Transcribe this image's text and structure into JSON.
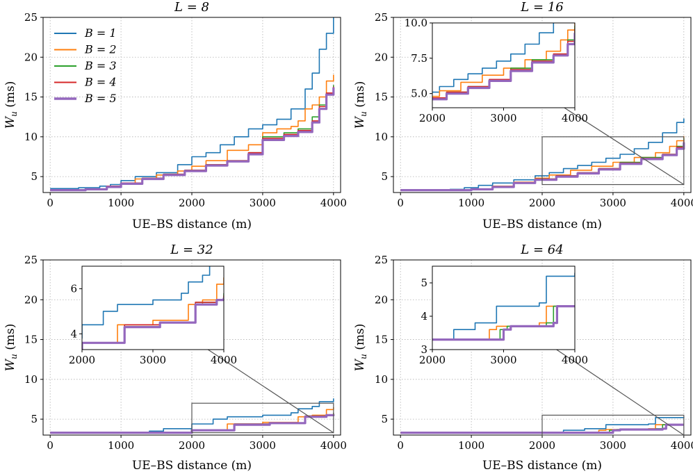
{
  "figure": {
    "x_label": "UE–BS distance (m)",
    "y_label_main": "W",
    "y_label_sub": "u",
    "y_label_unit": " (ms)"
  },
  "colors": {
    "B1": "#1f77b4",
    "B2": "#ff7f0e",
    "B3": "#2ca02c",
    "B4": "#d62728",
    "B5": "#9467bd",
    "grid": "#b0b0b0",
    "connector": "#555555"
  },
  "chart_data": [
    {
      "type": "line",
      "title": "L = 8",
      "xlim": [
        -100,
        4100
      ],
      "ylim": [
        3,
        25
      ],
      "xticks": [
        0,
        1000,
        2000,
        3000,
        4000
      ],
      "yticks": [
        5,
        10,
        15,
        20,
        25
      ],
      "legend": {
        "position": "top-left",
        "entries": [
          "B = 1",
          "B = 2",
          "B = 3",
          "B = 4",
          "B = 5"
        ]
      },
      "series": [
        {
          "name": "B = 1",
          "x": [
            0,
            400,
            700,
            850,
            1000,
            1200,
            1500,
            1800,
            2000,
            2200,
            2400,
            2600,
            2800,
            3000,
            3200,
            3400,
            3600,
            3700,
            3800,
            3900,
            4000
          ],
          "y": [
            3.5,
            3.6,
            3.8,
            4.0,
            4.5,
            5.0,
            5.5,
            6.5,
            7.5,
            8.0,
            9.0,
            10.0,
            11.0,
            11.5,
            12.2,
            13.5,
            16.0,
            18.0,
            21.0,
            23.0,
            25.0
          ]
        },
        {
          "name": "B = 2",
          "x": [
            0,
            500,
            800,
            1000,
            1200,
            1500,
            1800,
            2000,
            2200,
            2500,
            2800,
            3000,
            3200,
            3400,
            3500,
            3600,
            3700,
            3800,
            3900,
            4000
          ],
          "y": [
            3.3,
            3.4,
            3.8,
            4.2,
            4.7,
            5.2,
            5.7,
            6.3,
            7.0,
            8.3,
            9.0,
            10.5,
            11.0,
            11.3,
            12.0,
            13.5,
            14.0,
            15.0,
            17.0,
            17.8
          ]
        },
        {
          "name": "B = 3",
          "x": [
            0,
            500,
            800,
            1000,
            1300,
            1600,
            1900,
            2200,
            2500,
            2800,
            3000,
            3300,
            3500,
            3700,
            3800,
            3900,
            4000
          ],
          "y": [
            3.3,
            3.4,
            3.8,
            4.2,
            4.8,
            5.3,
            5.8,
            6.5,
            7.0,
            8.0,
            10.0,
            10.5,
            11.0,
            12.5,
            14.0,
            15.5,
            16.5
          ]
        },
        {
          "name": "B = 4",
          "x": [
            0,
            500,
            800,
            1000,
            1300,
            1600,
            1900,
            2200,
            2500,
            2800,
            3000,
            3300,
            3500,
            3700,
            3800,
            3900,
            4000
          ],
          "y": [
            3.3,
            3.4,
            3.8,
            4.2,
            4.8,
            5.3,
            5.8,
            6.5,
            7.0,
            8.0,
            9.8,
            10.3,
            10.8,
            12.0,
            13.8,
            15.5,
            16.3
          ]
        },
        {
          "name": "B = 5",
          "x": [
            0,
            500,
            800,
            1000,
            1300,
            1600,
            1900,
            2200,
            2500,
            2800,
            3000,
            3300,
            3500,
            3700,
            3800,
            3900,
            4000
          ],
          "y": [
            3.3,
            3.4,
            3.7,
            4.1,
            4.7,
            5.2,
            5.7,
            6.4,
            6.9,
            7.8,
            9.6,
            10.1,
            10.6,
            11.8,
            13.5,
            15.3,
            16.2
          ]
        }
      ]
    },
    {
      "type": "line",
      "title": "L = 16",
      "xlim": [
        -100,
        4100
      ],
      "ylim": [
        3,
        25
      ],
      "xticks": [
        0,
        1000,
        2000,
        3000,
        4000
      ],
      "yticks": [
        5,
        10,
        15,
        20,
        25
      ],
      "inset": {
        "xlim": [
          2000,
          4000
        ],
        "ylim": [
          4.0,
          10.0
        ],
        "xticks": [
          2000,
          3000,
          4000
        ],
        "yticks": [
          5.0,
          7.5,
          10.0
        ],
        "ytick_labels": [
          "5.0",
          "7.5",
          "10.0"
        ]
      },
      "series": [
        {
          "name": "B = 1",
          "x": [
            0,
            700,
            900,
            1100,
            1300,
            1600,
            1900,
            2100,
            2300,
            2500,
            2700,
            2900,
            3100,
            3300,
            3500,
            3700,
            3900,
            4000
          ],
          "y": [
            3.3,
            3.4,
            3.6,
            3.9,
            4.2,
            4.6,
            5.1,
            5.5,
            6.0,
            6.4,
            6.8,
            7.3,
            7.8,
            8.5,
            9.3,
            10.5,
            11.8,
            12.3
          ]
        },
        {
          "name": "B = 2",
          "x": [
            0,
            1000,
            1300,
            1600,
            1900,
            2100,
            2400,
            2700,
            3000,
            3300,
            3600,
            3800,
            3900,
            4000
          ],
          "y": [
            3.3,
            3.4,
            3.8,
            4.3,
            4.8,
            5.2,
            5.8,
            6.3,
            6.8,
            7.4,
            8.0,
            8.8,
            9.5,
            10.1
          ]
        },
        {
          "name": "B = 3",
          "x": [
            0,
            1000,
            1300,
            1600,
            1900,
            2200,
            2500,
            2800,
            3100,
            3400,
            3700,
            3900,
            4000
          ],
          "y": [
            3.3,
            3.4,
            3.7,
            4.2,
            4.7,
            5.1,
            5.5,
            6.0,
            6.8,
            7.4,
            7.8,
            8.8,
            9.8
          ]
        },
        {
          "name": "B = 4",
          "x": [
            0,
            1000,
            1300,
            1600,
            1900,
            2200,
            2500,
            2800,
            3100,
            3400,
            3700,
            3900,
            4000
          ],
          "y": [
            3.3,
            3.4,
            3.7,
            4.2,
            4.7,
            5.1,
            5.5,
            6.0,
            6.7,
            7.3,
            7.8,
            8.7,
            9.6
          ]
        },
        {
          "name": "B = 5",
          "x": [
            0,
            1000,
            1300,
            1600,
            1900,
            2200,
            2500,
            2800,
            3100,
            3400,
            3700,
            3900,
            4000
          ],
          "y": [
            3.3,
            3.4,
            3.7,
            4.2,
            4.6,
            5.0,
            5.4,
            5.9,
            6.6,
            7.2,
            7.7,
            8.5,
            9.3
          ]
        }
      ]
    },
    {
      "type": "line",
      "title": "L = 32",
      "xlim": [
        -100,
        4100
      ],
      "ylim": [
        3,
        25
      ],
      "xticks": [
        0,
        1000,
        2000,
        3000,
        4000
      ],
      "yticks": [
        5,
        10,
        15,
        20,
        25
      ],
      "inset": {
        "xlim": [
          2000,
          4000
        ],
        "ylim": [
          3.3,
          7.0
        ],
        "xticks": [
          2000,
          3000,
          4000
        ],
        "yticks": [
          4,
          6
        ],
        "ytick_labels": [
          "4",
          "6"
        ]
      },
      "series": [
        {
          "name": "B = 1",
          "x": [
            0,
            1400,
            1600,
            2000,
            2300,
            2500,
            3000,
            3400,
            3500,
            3700,
            3800,
            4000
          ],
          "y": [
            3.3,
            3.5,
            3.8,
            4.4,
            5.0,
            5.3,
            5.5,
            5.8,
            6.3,
            6.6,
            7.2,
            7.6
          ]
        },
        {
          "name": "B = 2",
          "x": [
            0,
            2000,
            2500,
            3000,
            3500,
            3700,
            3900,
            4000
          ],
          "y": [
            3.3,
            3.6,
            4.4,
            4.6,
            5.3,
            5.5,
            6.2,
            6.5
          ]
        },
        {
          "name": "B = 3",
          "x": [
            0,
            2000,
            2600,
            3100,
            3600,
            3900,
            4000
          ],
          "y": [
            3.3,
            3.6,
            4.4,
            4.5,
            5.4,
            5.5,
            5.8
          ]
        },
        {
          "name": "B = 4",
          "x": [
            0,
            2000,
            2600,
            3100,
            3600,
            3900,
            4000
          ],
          "y": [
            3.3,
            3.6,
            4.4,
            4.5,
            5.4,
            5.5,
            5.7
          ]
        },
        {
          "name": "B = 5",
          "x": [
            0,
            2000,
            2600,
            3100,
            3600,
            3900,
            4000
          ],
          "y": [
            3.3,
            3.6,
            4.3,
            4.5,
            5.3,
            5.5,
            5.6
          ]
        }
      ]
    },
    {
      "type": "line",
      "title": "L = 64",
      "xlim": [
        -100,
        4100
      ],
      "ylim": [
        3,
        25
      ],
      "xticks": [
        0,
        1000,
        2000,
        3000,
        4000
      ],
      "yticks": [
        5,
        10,
        15,
        20,
        25
      ],
      "inset": {
        "xlim": [
          2000,
          4000
        ],
        "ylim": [
          3.0,
          5.5
        ],
        "xticks": [
          2000,
          3000,
          4000
        ],
        "yticks": [
          3,
          4,
          5
        ],
        "ytick_labels": [
          "3",
          "4",
          "5"
        ]
      },
      "series": [
        {
          "name": "B = 1",
          "x": [
            0,
            2300,
            2600,
            2900,
            3500,
            3600,
            4000
          ],
          "y": [
            3.3,
            3.6,
            3.8,
            4.3,
            4.4,
            5.2,
            5.3
          ]
        },
        {
          "name": "B = 2",
          "x": [
            0,
            2800,
            2900,
            3500,
            3600,
            4000
          ],
          "y": [
            3.3,
            3.6,
            3.7,
            3.8,
            4.3,
            4.3
          ]
        },
        {
          "name": "B = 3",
          "x": [
            0,
            2950,
            3050,
            3600,
            3700,
            4000
          ],
          "y": [
            3.3,
            3.6,
            3.7,
            3.8,
            4.3,
            4.3
          ]
        },
        {
          "name": "B = 4",
          "x": [
            0,
            3000,
            3100,
            3700,
            3750,
            4000
          ],
          "y": [
            3.3,
            3.6,
            3.7,
            3.8,
            4.3,
            4.3
          ]
        },
        {
          "name": "B = 5",
          "x": [
            0,
            3000,
            3100,
            3700,
            3750,
            4000
          ],
          "y": [
            3.3,
            3.6,
            3.7,
            3.8,
            4.3,
            4.3
          ]
        }
      ]
    }
  ]
}
